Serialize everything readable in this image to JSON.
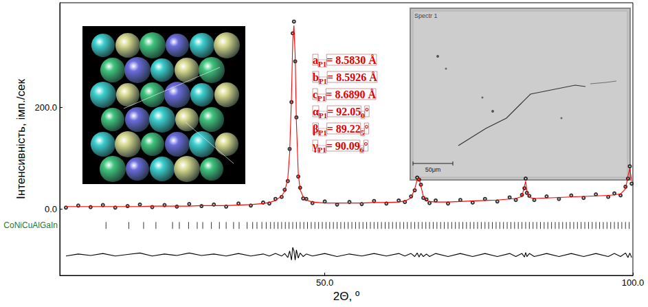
{
  "chart_data": {
    "type": "scatter",
    "xlabel": "2Θ, º",
    "ylabel": "Інтенсивність, імп./сек",
    "xlim": [
      7,
      100
    ],
    "ylim": [
      -130,
      405
    ],
    "xticks": [
      {
        "value": 50,
        "label": "50.0"
      },
      {
        "value": 100,
        "label": "100.0"
      }
    ],
    "yticks": [
      {
        "value": 0,
        "label": "0.0"
      },
      {
        "value": 200,
        "label": "200.0"
      }
    ],
    "grid": false,
    "x": [
      8,
      10,
      12,
      14,
      16,
      18,
      20,
      22,
      24,
      26,
      28,
      30,
      32,
      34,
      36,
      38,
      40,
      41,
      42,
      43,
      43.5,
      44,
      44.3,
      44.6,
      44.8,
      45.0,
      45.2,
      45.4,
      45.7,
      46,
      46.5,
      47,
      48,
      50,
      52,
      54,
      56,
      58,
      60,
      62,
      63,
      64,
      64.6,
      65.0,
      65.3,
      65.6,
      66,
      66.5,
      67,
      68,
      70,
      72,
      74,
      76,
      78,
      80,
      81,
      82,
      82.4,
      82.6,
      82.8,
      83.2,
      84,
      86,
      88,
      90,
      92,
      94,
      96,
      97,
      98,
      98.8,
      99.2,
      99.5,
      99.8
    ],
    "series": [
      {
        "type": "scatter",
        "marker": "open_circle",
        "color": "#000000",
        "values": [
          3,
          7,
          4,
          8,
          3,
          6,
          9,
          4,
          8,
          5,
          10,
          6,
          9,
          5,
          11,
          7,
          13,
          11,
          20,
          24,
          38,
          55,
          118,
          210,
          345,
          368,
          290,
          180,
          64,
          42,
          21,
          20,
          12,
          15,
          9,
          14,
          10,
          16,
          11,
          17,
          14,
          25,
          37,
          62,
          58,
          48,
          22,
          19,
          12,
          17,
          11,
          18,
          13,
          20,
          15,
          23,
          18,
          28,
          41,
          60,
          32,
          26,
          18,
          25,
          20,
          27,
          22,
          29,
          24,
          31,
          27,
          44,
          60,
          84,
          50
        ]
      },
      {
        "type": "line",
        "line_style": "solid",
        "color": "#ff0000",
        "values": [
          5,
          5,
          5,
          5,
          5,
          5,
          5,
          6,
          6,
          6,
          6,
          7,
          7,
          7,
          8,
          9,
          11,
          13,
          17,
          26,
          35,
          60,
          110,
          220,
          330,
          360,
          300,
          170,
          70,
          38,
          24,
          18,
          14,
          12,
          12,
          12,
          12,
          13,
          13,
          14,
          16,
          22,
          40,
          58,
          62,
          45,
          25,
          17,
          15,
          14,
          14,
          15,
          16,
          17,
          18,
          20,
          21,
          25,
          45,
          55,
          35,
          23,
          21,
          22,
          23,
          24,
          25,
          26,
          27,
          28,
          30,
          40,
          65,
          80,
          55
        ]
      },
      {
        "type": "line",
        "line_style": "solid",
        "color": "#000000",
        "values": [
          -92,
          -88,
          -91,
          -87,
          -92,
          -89,
          -86,
          -92,
          -88,
          -91,
          -86,
          -91,
          -88,
          -92,
          -87,
          -92,
          -88,
          -92,
          -87,
          -92,
          -87,
          -95,
          -82,
          -100,
          -75,
          -82,
          -100,
          -80,
          -96,
          -86,
          -93,
          -88,
          -92,
          -87,
          -93,
          -88,
          -92,
          -87,
          -92,
          -87,
          -92,
          -87,
          -93,
          -86,
          -94,
          -87,
          -93,
          -88,
          -93,
          -87,
          -93,
          -87,
          -93,
          -87,
          -93,
          -87,
          -93,
          -87,
          -94,
          -85,
          -93,
          -87,
          -93,
          -87,
          -93,
          -87,
          -93,
          -87,
          -93,
          -87,
          -93,
          -86,
          -95,
          -86,
          -95
        ]
      }
    ],
    "reflections": {
      "name": "CoNiCuAlGaIn",
      "color": "#000000",
      "marker": "vbar",
      "y": -32,
      "x": [
        14.5,
        18.2,
        20.6,
        22.6,
        25.3,
        26.4,
        27.9,
        29.3,
        30.2,
        31.6,
        32.9,
        34.0,
        35.2,
        36.1,
        37.4,
        38.3,
        39.0,
        39.8,
        40.5,
        41.2,
        41.8,
        42.4,
        43.0,
        43.6,
        44.2,
        44.8,
        45.4,
        46.0,
        46.6,
        47.2,
        47.8,
        48.4,
        49.0,
        49.6,
        50.2,
        50.8,
        51.4,
        52.0,
        52.6,
        53.2,
        53.8,
        54.4,
        55.0,
        55.6,
        56.2,
        56.8,
        57.4,
        58.0,
        58.6,
        59.2,
        59.8,
        60.4,
        61.0,
        61.6,
        62.2,
        62.8,
        63.4,
        64.0,
        64.6,
        65.2,
        65.8,
        66.4,
        67.0,
        67.6,
        68.2,
        68.8,
        69.4,
        70.0,
        70.6,
        71.2,
        71.8,
        72.4,
        73.0,
        73.6,
        74.2,
        74.8,
        75.4,
        76.0,
        76.6,
        77.2,
        77.8,
        78.4,
        79.0,
        79.6,
        80.2,
        80.8,
        81.4,
        82.0,
        82.6,
        83.2,
        83.8,
        84.4,
        85.0,
        85.6,
        86.2,
        86.8,
        87.4,
        88.0,
        88.6,
        89.2,
        89.8,
        90.4,
        91.0,
        91.6,
        92.2,
        92.8,
        93.4,
        94.0,
        94.6,
        95.2,
        95.8,
        96.4,
        97.0,
        97.6,
        98.2,
        98.8,
        99.4
      ]
    },
    "annotations": [
      {
        "label": "a",
        "sub": "P1",
        "text": "= 8.5830 Å"
      },
      {
        "label": "b",
        "sub": "P1",
        "text": "= 8.5926 Å"
      },
      {
        "label": "c",
        "sub": "P1",
        "text": "= 8.6890 Å"
      },
      {
        "label": "α",
        "sub": "P1",
        "text": "= 92.05",
        "text_sub": "0",
        "end": "°"
      },
      {
        "label": "β",
        "sub": "P1",
        "text": "= 89.22",
        "text_sub": "5",
        "end": "°"
      },
      {
        "label": "γ",
        "sub": "P1",
        "text": "= 90.09",
        "text_sub": "6",
        "end": "°"
      }
    ],
    "insets": [
      {
        "type": "structure"
      },
      {
        "type": "micrograph",
        "title": "Spectr 1",
        "scale_bar": "50μm"
      }
    ]
  }
}
